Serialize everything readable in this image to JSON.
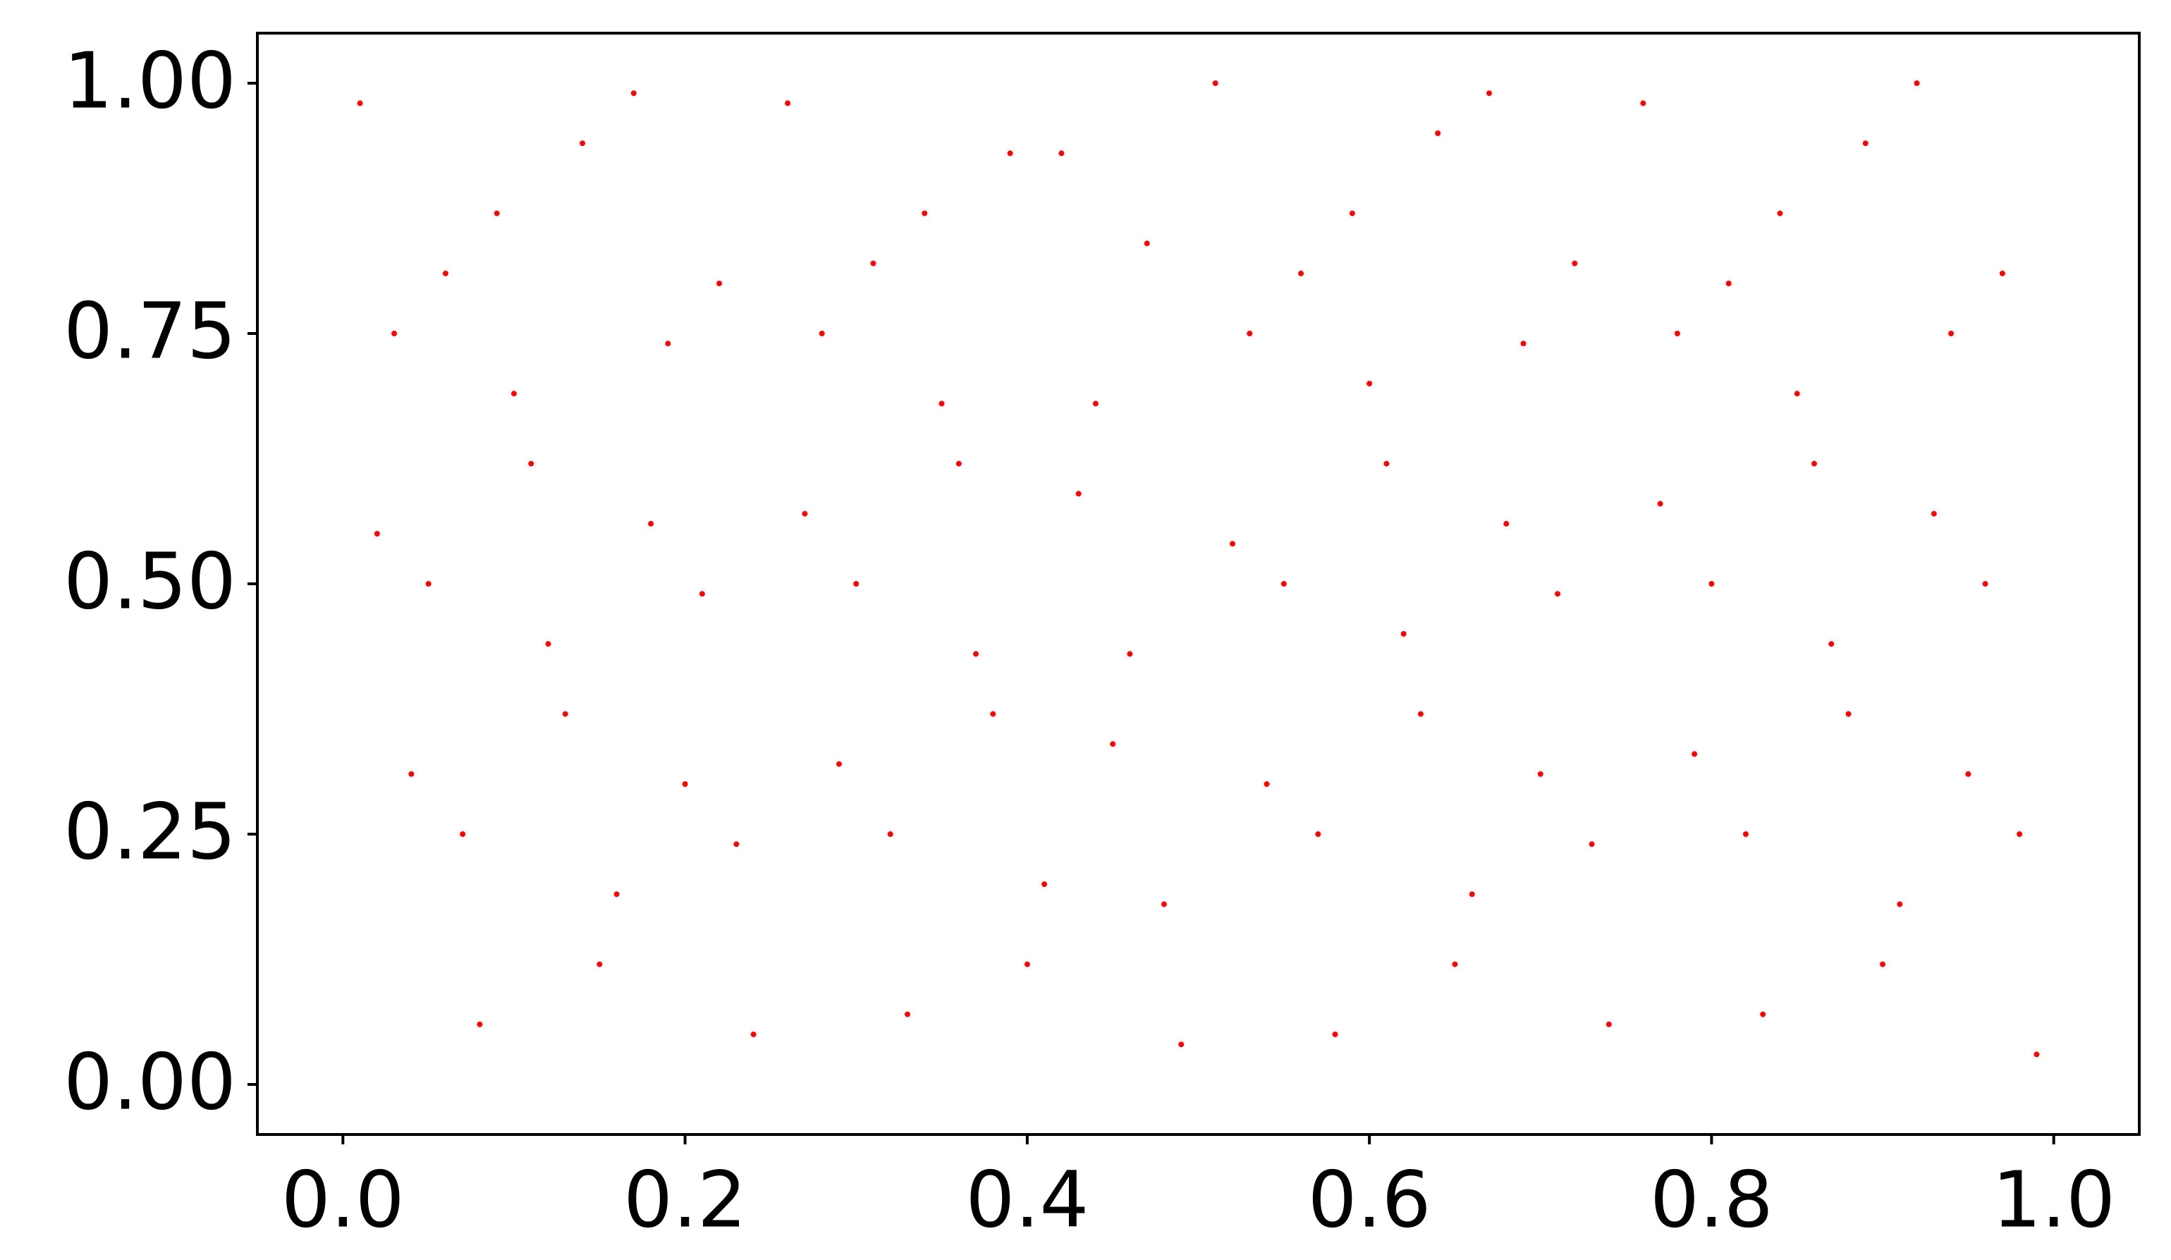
{
  "chart_data": {
    "type": "scatter",
    "color": "#ff0000",
    "x": [
      0.01,
      0.03,
      0.05,
      0.07,
      0.09,
      0.11,
      0.13,
      0.15,
      0.17,
      0.19,
      0.21,
      0.23,
      0.26,
      0.28,
      0.3,
      0.32,
      0.34,
      0.36,
      0.38,
      0.4,
      0.42,
      0.44,
      0.46,
      0.48,
      0.51,
      0.53,
      0.55,
      0.57,
      0.59,
      0.61,
      0.63,
      0.65,
      0.67,
      0.69,
      0.71,
      0.73,
      0.76,
      0.78,
      0.8,
      0.82,
      0.84,
      0.86,
      0.88,
      0.9,
      0.92,
      0.94,
      0.96,
      0.98,
      0.02,
      0.04,
      0.06,
      0.08,
      0.1,
      0.12,
      0.14,
      0.16,
      0.18,
      0.2,
      0.22,
      0.24,
      0.27,
      0.29,
      0.31,
      0.33,
      0.35,
      0.37,
      0.39,
      0.41,
      0.43,
      0.45,
      0.47,
      0.49,
      0.52,
      0.54,
      0.56,
      0.58,
      0.6,
      0.62,
      0.64,
      0.66,
      0.68,
      0.7,
      0.72,
      0.74,
      0.77,
      0.79,
      0.81,
      0.83,
      0.85,
      0.87,
      0.89,
      0.91,
      0.93,
      0.95,
      0.97,
      0.99
    ],
    "y": [
      0.98,
      0.75,
      0.5,
      0.25,
      0.87,
      0.62,
      0.37,
      0.12,
      0.99,
      0.74,
      0.49,
      0.24,
      0.98,
      0.75,
      0.5,
      0.25,
      0.87,
      0.62,
      0.37,
      0.12,
      0.93,
      0.68,
      0.43,
      0.18,
      1.0,
      0.75,
      0.5,
      0.25,
      0.87,
      0.62,
      0.37,
      0.12,
      0.99,
      0.74,
      0.49,
      0.24,
      0.98,
      0.75,
      0.5,
      0.25,
      0.87,
      0.62,
      0.37,
      0.12,
      1.0,
      0.75,
      0.5,
      0.25,
      0.55,
      0.31,
      0.81,
      0.06,
      0.69,
      0.44,
      0.94,
      0.19,
      0.56,
      0.3,
      0.8,
      0.05,
      0.57,
      0.32,
      0.82,
      0.07,
      0.68,
      0.43,
      0.93,
      0.2,
      0.59,
      0.34,
      0.84,
      0.04,
      0.54,
      0.3,
      0.81,
      0.05,
      0.7,
      0.45,
      0.95,
      0.19,
      0.56,
      0.31,
      0.82,
      0.06,
      0.58,
      0.33,
      0.8,
      0.07,
      0.69,
      0.44,
      0.94,
      0.18,
      0.57,
      0.31,
      0.81,
      0.03
    ],
    "xlim": [
      -0.05,
      1.05
    ],
    "ylim": [
      -0.05,
      1.05
    ],
    "xticks": [
      {
        "value": 0,
        "label": "0.0"
      },
      0.2,
      0.4,
      0.6,
      0.8,
      {
        "value": 1,
        "label": "1.0"
      }
    ],
    "yticks": [
      {
        "value": 0,
        "label": "0.00"
      },
      0.25,
      {
        "value": 0.5,
        "label": "0.50"
      },
      0.75,
      {
        "value": 1,
        "label": "1.00"
      }
    ]
  }
}
